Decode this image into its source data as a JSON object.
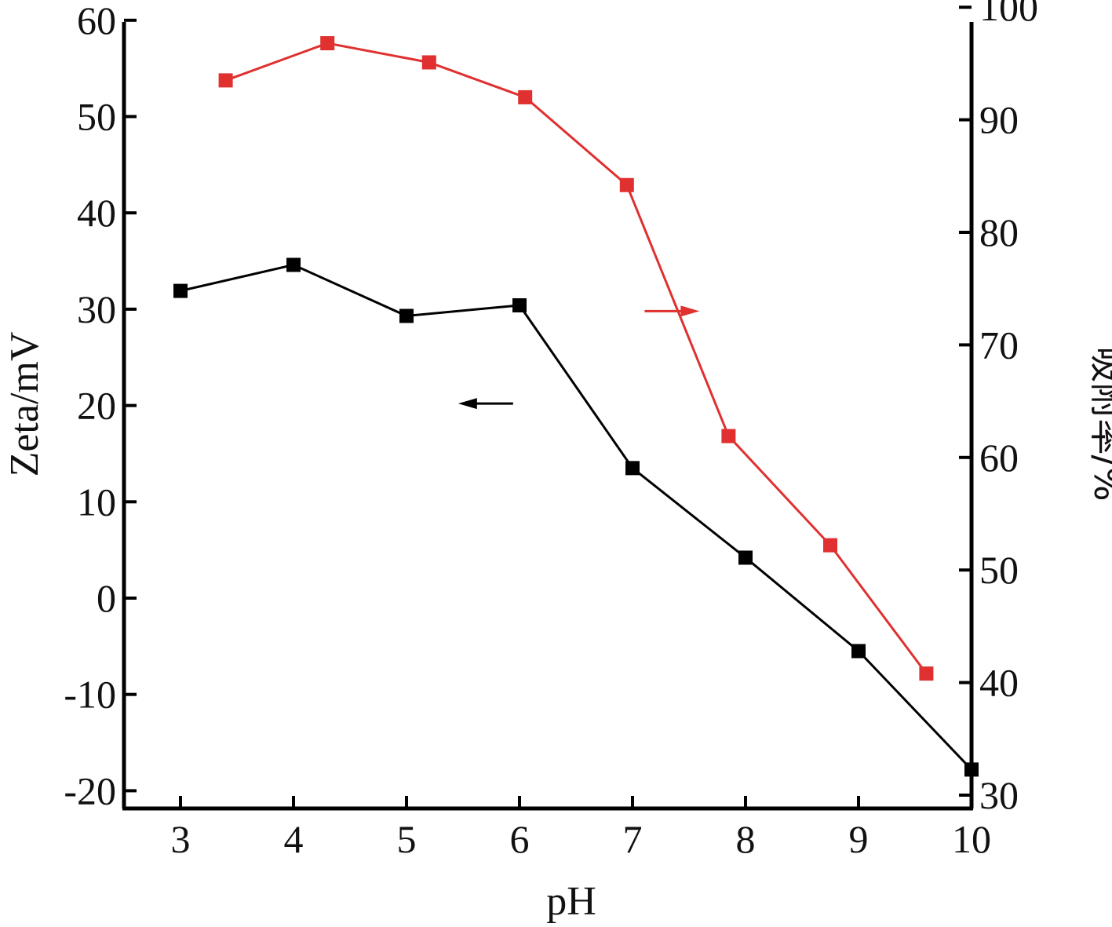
{
  "chart_data": {
    "type": "line",
    "xlabel": "pH",
    "ylabel_left": "Zeta/mV",
    "ylabel_right": "吸附率/%",
    "x_ticks": [
      "3",
      "4",
      "5",
      "6",
      "7",
      "8",
      "9",
      "10"
    ],
    "y_left_ticks": [
      "-20",
      "-10",
      "0",
      "10",
      "20",
      "30",
      "40",
      "50",
      "60"
    ],
    "y_right_ticks": [
      "30",
      "40",
      "50",
      "60",
      "70",
      "80",
      "90",
      "100"
    ],
    "xlim": [
      2.5,
      10
    ],
    "ylim_left": [
      -22,
      60
    ],
    "ylim_right": [
      30,
      100
    ],
    "series": [
      {
        "axis": "left",
        "color": "#000000",
        "marker": "square",
        "x": [
          3,
          4,
          5,
          6,
          7,
          8,
          9,
          10
        ],
        "y": [
          31.9,
          34.6,
          29.3,
          30.4,
          13.5,
          4.2,
          -5.5,
          -17.8
        ]
      },
      {
        "axis": "right",
        "color": "#e03030",
        "marker": "square",
        "x": [
          3.4,
          4.3,
          5.2,
          6.05,
          6.95,
          7.85,
          8.75,
          9.6
        ],
        "y": [
          93.5,
          96.8,
          95.1,
          92.0,
          84.2,
          61.9,
          52.2,
          40.8
        ]
      }
    ],
    "annotations": [
      {
        "type": "arrow",
        "direction": "left",
        "color": "#000000",
        "points_to": "left-axis",
        "at": {
          "x": 5.7,
          "y_left": 20.2
        }
      },
      {
        "type": "arrow",
        "direction": "right",
        "color": "#e03030",
        "points_to": "right-axis",
        "at": {
          "x": 7.35,
          "y_right": 73.0
        }
      }
    ]
  }
}
